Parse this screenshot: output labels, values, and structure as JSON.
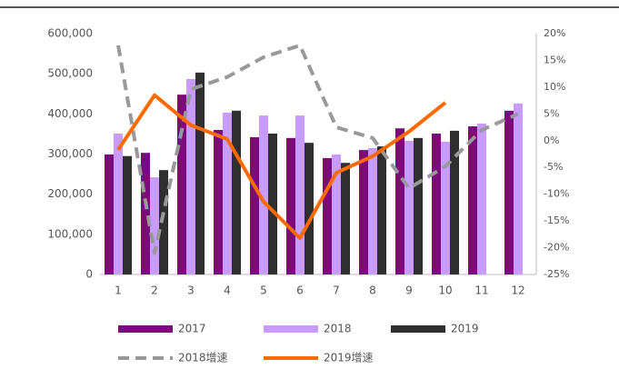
{
  "chart_data": {
    "type": "bar",
    "categories": [
      "1",
      "2",
      "3",
      "4",
      "5",
      "6",
      "7",
      "8",
      "9",
      "10",
      "11",
      "12"
    ],
    "series": [
      {
        "name": "2017",
        "type": "bar",
        "color": "#7b0a7e",
        "values": [
          299000,
          303000,
          448000,
          360000,
          342000,
          340000,
          290000,
          310000,
          364000,
          351000,
          369000,
          408000
        ]
      },
      {
        "name": "2018",
        "type": "bar",
        "color": "#c89bff",
        "values": [
          351000,
          242000,
          487000,
          403000,
          396000,
          396000,
          299000,
          315000,
          333000,
          331000,
          376000,
          426000
        ]
      },
      {
        "name": "2019",
        "type": "bar",
        "color": "#2f2f2f",
        "values": [
          295000,
          260000,
          503000,
          408000,
          351000,
          328000,
          278000,
          319000,
          340000,
          358000,
          null,
          null
        ]
      },
      {
        "name": "2018增速",
        "type": "line",
        "dashed": true,
        "axis": "y2",
        "color": "#999999",
        "values": [
          17.8,
          -21,
          9.6,
          11.9,
          15.6,
          17.8,
          2.5,
          0.5,
          -8.9,
          -4.8,
          2,
          5
        ]
      },
      {
        "name": "2019增速",
        "type": "line",
        "axis": "y2",
        "color": "#ff6a00",
        "values": [
          -1.7,
          8.5,
          2.9,
          0.3,
          -11.4,
          -18.2,
          -6,
          -2.9,
          1.7,
          7.1,
          null,
          null
        ]
      }
    ],
    "ylim": [
      0,
      600000
    ],
    "yticks": [
      0,
      {
        "value": 100000,
        "label": "100,000"
      },
      {
        "value": 200000,
        "label": "200,000"
      },
      {
        "value": 300000,
        "label": "300,000"
      },
      {
        "value": 400000,
        "label": "400,000"
      },
      {
        "value": 500000,
        "label": "500,000"
      },
      {
        "value": 600000,
        "label": "600,000"
      }
    ],
    "y2lim": [
      -25,
      20
    ],
    "y2ticks": [
      {
        "value": -25,
        "label": "-25%"
      },
      {
        "value": -20,
        "label": "-20%"
      },
      {
        "value": -15,
        "label": "-15%"
      },
      {
        "value": -10,
        "label": "-10%"
      },
      {
        "value": -5,
        "label": "-5%"
      },
      {
        "value": 0,
        "label": "0%"
      },
      {
        "value": 5,
        "label": "5%"
      },
      {
        "value": 10,
        "label": "10%"
      },
      {
        "value": 15,
        "label": "15%"
      },
      {
        "value": 20,
        "label": "20%"
      }
    ],
    "legend": "bottom"
  }
}
